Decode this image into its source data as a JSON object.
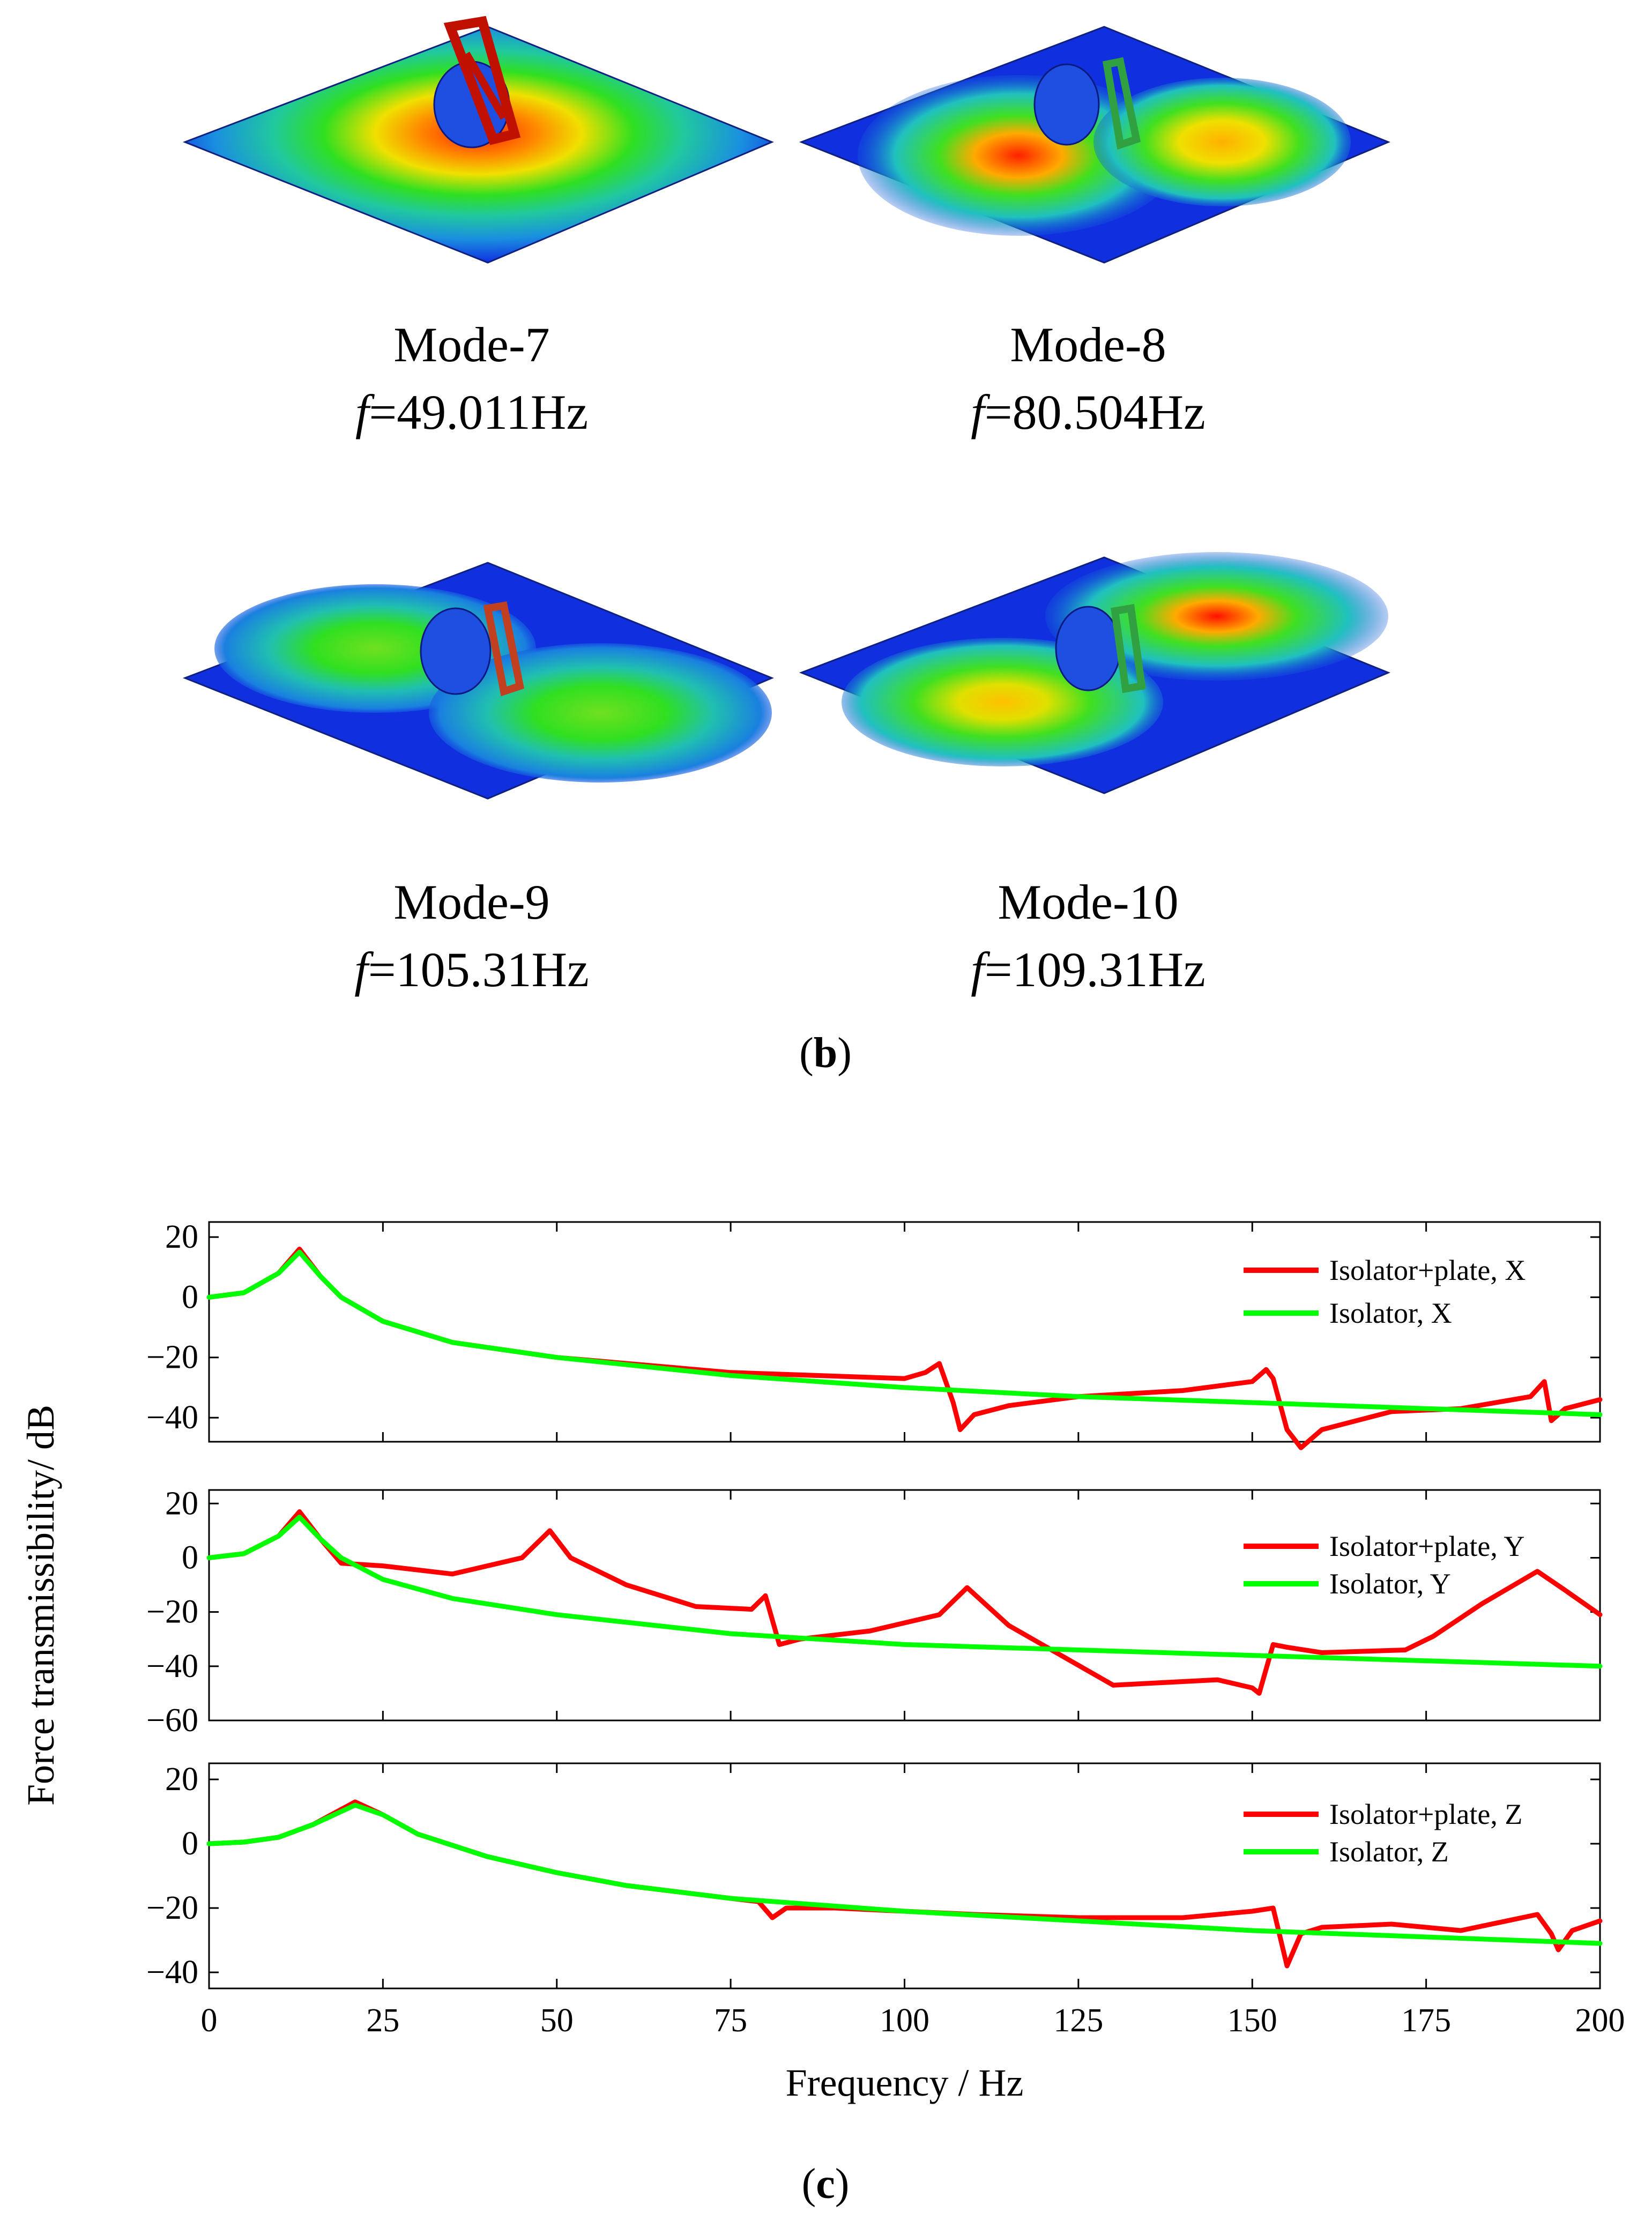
{
  "panel_b": {
    "label_open": "(",
    "label_letter": "b",
    "label_close": ")",
    "modes": [
      {
        "name": "Mode-7",
        "freq_prefix": "f",
        "freq_value": "=49.011Hz",
        "shape": "single-lobe"
      },
      {
        "name": "Mode-8",
        "freq_prefix": "f",
        "freq_value": "=80.504Hz",
        "shape": "two-lobe-hot-left"
      },
      {
        "name": "Mode-9",
        "freq_prefix": "f",
        "freq_value": "=105.31Hz",
        "shape": "two-lobe-cool"
      },
      {
        "name": "Mode-10",
        "freq_prefix": "f",
        "freq_value": "=109.31Hz",
        "shape": "two-lobe-hot-right"
      }
    ]
  },
  "panel_c": {
    "label_open": "(",
    "label_letter": "c",
    "label_close": ")"
  },
  "colors": {
    "plate_plus_isolator": "#ff0000",
    "isolator": "#00ff00",
    "plate_blue": "#1030e0"
  },
  "chart_data": {
    "type": "line",
    "xlabel": "Frequency / Hz",
    "ylabel": "Force transmissibility/ dB",
    "xlim": [
      0,
      200
    ],
    "xticks": [
      0,
      25,
      50,
      75,
      100,
      125,
      150,
      175,
      200
    ],
    "subplots": [
      {
        "name": "X",
        "ylim": [
          -48,
          25
        ],
        "yticks": [
          20,
          0,
          -20,
          -40
        ],
        "series": [
          {
            "name": "Isolator+plate, X",
            "color": "#ff0000",
            "x": [
              0,
              5,
              10,
              13,
              16,
              19,
              25,
              35,
              50,
              75,
              100,
              103,
              105,
              107,
              108,
              110,
              115,
              125,
              140,
              150,
              152,
              153,
              155,
              157,
              160,
              170,
              180,
              190,
              192,
              193,
              195,
              200
            ],
            "y": [
              0,
              1.5,
              8,
              16,
              7,
              0,
              -8,
              -15,
              -20,
              -25,
              -27,
              -25,
              -22,
              -35,
              -44,
              -39,
              -36,
              -33,
              -31,
              -28,
              -24,
              -27,
              -44,
              -50,
              -44,
              -38,
              -37,
              -33,
              -28,
              -41,
              -37,
              -34
            ]
          },
          {
            "name": "Isolator, X",
            "color": "#00ff00",
            "x": [
              0,
              5,
              10,
              13,
              16,
              19,
              25,
              35,
              50,
              75,
              100,
              125,
              150,
              175,
              200
            ],
            "y": [
              0,
              1.5,
              8,
              15,
              7,
              0,
              -8,
              -15,
              -20,
              -26,
              -30,
              -33,
              -35,
              -37,
              -39
            ]
          }
        ]
      },
      {
        "name": "Y",
        "ylim": [
          -60,
          25
        ],
        "yticks": [
          20,
          0,
          -20,
          -40,
          -60
        ],
        "series": [
          {
            "name": "Isolator+plate, Y",
            "color": "#ff0000",
            "x": [
              0,
              5,
              10,
              13,
              16,
              19,
              25,
              35,
              45,
              49,
              52,
              60,
              70,
              78,
              80,
              82,
              85,
              95,
              105,
              109,
              115,
              130,
              145,
              150,
              151,
              153,
              155,
              160,
              172,
              176,
              183,
              191,
              195,
              200
            ],
            "y": [
              0,
              1.5,
              8,
              17,
              7,
              -2,
              -3,
              -6,
              0,
              10,
              0,
              -10,
              -18,
              -19,
              -14,
              -32,
              -30,
              -27,
              -21,
              -11,
              -25,
              -47,
              -45,
              -48,
              -50,
              -32,
              -33,
              -35,
              -34,
              -29,
              -17,
              -5,
              -12,
              -21
            ]
          },
          {
            "name": "Isolator, Y",
            "color": "#00ff00",
            "x": [
              0,
              5,
              10,
              13,
              16,
              19,
              25,
              35,
              50,
              75,
              100,
              125,
              150,
              175,
              200
            ],
            "y": [
              0,
              1.5,
              8,
              15,
              7,
              0,
              -8,
              -15,
              -21,
              -28,
              -32,
              -34,
              -36,
              -38,
              -40
            ]
          }
        ]
      },
      {
        "name": "Z",
        "ylim": [
          -45,
          25
        ],
        "yticks": [
          20,
          0,
          -20,
          -40
        ],
        "series": [
          {
            "name": "Isolator+plate, Z",
            "color": "#ff0000",
            "x": [
              0,
              5,
              10,
              15,
              21,
              25,
              30,
              40,
              50,
              60,
              75,
              79,
              81,
              83,
              90,
              100,
              110,
              125,
              140,
              150,
              153,
              155,
              157,
              160,
              170,
              180,
              191,
              193,
              194,
              196,
              200
            ],
            "y": [
              0,
              0.5,
              2,
              6,
              13,
              9,
              3,
              -4,
              -9,
              -13,
              -17,
              -18,
              -23,
              -20,
              -20,
              -21,
              -22,
              -23,
              -23,
              -21,
              -20,
              -38,
              -28,
              -26,
              -25,
              -27,
              -22,
              -28,
              -33,
              -27,
              -24
            ]
          },
          {
            "name": "Isolator, Z",
            "color": "#00ff00",
            "x": [
              0,
              5,
              10,
              15,
              21,
              25,
              30,
              40,
              50,
              60,
              75,
              100,
              125,
              150,
              175,
              200
            ],
            "y": [
              0,
              0.5,
              2,
              6,
              12,
              9,
              3,
              -4,
              -9,
              -13,
              -17,
              -21,
              -24,
              -27,
              -29,
              -31
            ]
          }
        ]
      }
    ]
  }
}
